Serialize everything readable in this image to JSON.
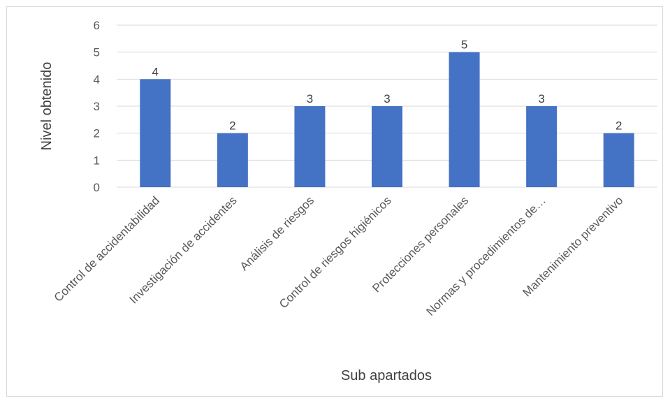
{
  "chart_data": {
    "type": "bar",
    "title": "",
    "xlabel": "Sub apartados",
    "ylabel": "Nivel obtenido",
    "categories": [
      "Control de accidentabilidad",
      "Investigación de accidentes",
      "Análisis de riesgos",
      "Control de riesgos higiénicos",
      "Protecciones personales",
      "Normas y procedimientos de…",
      "Mantenimiento preventivo"
    ],
    "values": [
      4,
      2,
      3,
      3,
      5,
      3,
      2
    ],
    "ylim": [
      0,
      6
    ],
    "yticks": [
      0,
      1,
      2,
      3,
      4,
      5,
      6
    ],
    "grid": true,
    "legend": "none",
    "bar_color": "#4472c4",
    "grid_color": "#d9d9d9"
  }
}
